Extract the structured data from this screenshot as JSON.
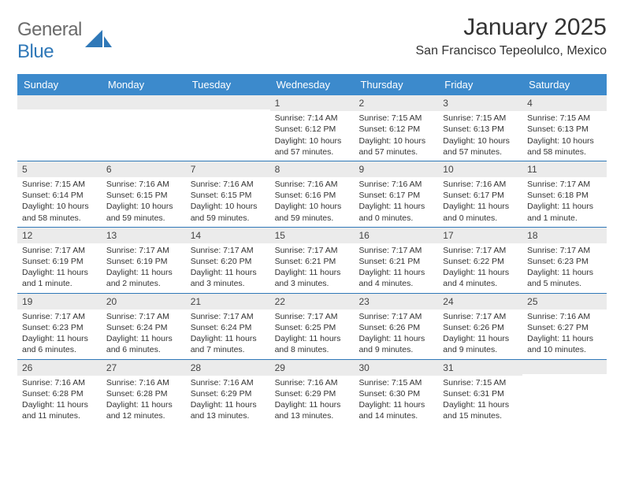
{
  "logo": {
    "word1": "General",
    "word2": "Blue"
  },
  "colors": {
    "header_bg": "#3c8acc",
    "row_divider": "#2f78b8",
    "day_band_bg": "#ebebeb",
    "logo_gray": "#6b6b6b",
    "logo_blue": "#2f78b8"
  },
  "title": "January 2025",
  "location": "San Francisco Tepeolulco, Mexico",
  "weekdays": [
    "Sunday",
    "Monday",
    "Tuesday",
    "Wednesday",
    "Thursday",
    "Friday",
    "Saturday"
  ],
  "weeks": [
    [
      null,
      null,
      null,
      {
        "n": "1",
        "sunrise": "7:14 AM",
        "sunset": "6:12 PM",
        "daylight": "10 hours and 57 minutes."
      },
      {
        "n": "2",
        "sunrise": "7:15 AM",
        "sunset": "6:12 PM",
        "daylight": "10 hours and 57 minutes."
      },
      {
        "n": "3",
        "sunrise": "7:15 AM",
        "sunset": "6:13 PM",
        "daylight": "10 hours and 57 minutes."
      },
      {
        "n": "4",
        "sunrise": "7:15 AM",
        "sunset": "6:13 PM",
        "daylight": "10 hours and 58 minutes."
      }
    ],
    [
      {
        "n": "5",
        "sunrise": "7:15 AM",
        "sunset": "6:14 PM",
        "daylight": "10 hours and 58 minutes."
      },
      {
        "n": "6",
        "sunrise": "7:16 AM",
        "sunset": "6:15 PM",
        "daylight": "10 hours and 59 minutes."
      },
      {
        "n": "7",
        "sunrise": "7:16 AM",
        "sunset": "6:15 PM",
        "daylight": "10 hours and 59 minutes."
      },
      {
        "n": "8",
        "sunrise": "7:16 AM",
        "sunset": "6:16 PM",
        "daylight": "10 hours and 59 minutes."
      },
      {
        "n": "9",
        "sunrise": "7:16 AM",
        "sunset": "6:17 PM",
        "daylight": "11 hours and 0 minutes."
      },
      {
        "n": "10",
        "sunrise": "7:16 AM",
        "sunset": "6:17 PM",
        "daylight": "11 hours and 0 minutes."
      },
      {
        "n": "11",
        "sunrise": "7:17 AM",
        "sunset": "6:18 PM",
        "daylight": "11 hours and 1 minute."
      }
    ],
    [
      {
        "n": "12",
        "sunrise": "7:17 AM",
        "sunset": "6:19 PM",
        "daylight": "11 hours and 1 minute."
      },
      {
        "n": "13",
        "sunrise": "7:17 AM",
        "sunset": "6:19 PM",
        "daylight": "11 hours and 2 minutes."
      },
      {
        "n": "14",
        "sunrise": "7:17 AM",
        "sunset": "6:20 PM",
        "daylight": "11 hours and 3 minutes."
      },
      {
        "n": "15",
        "sunrise": "7:17 AM",
        "sunset": "6:21 PM",
        "daylight": "11 hours and 3 minutes."
      },
      {
        "n": "16",
        "sunrise": "7:17 AM",
        "sunset": "6:21 PM",
        "daylight": "11 hours and 4 minutes."
      },
      {
        "n": "17",
        "sunrise": "7:17 AM",
        "sunset": "6:22 PM",
        "daylight": "11 hours and 4 minutes."
      },
      {
        "n": "18",
        "sunrise": "7:17 AM",
        "sunset": "6:23 PM",
        "daylight": "11 hours and 5 minutes."
      }
    ],
    [
      {
        "n": "19",
        "sunrise": "7:17 AM",
        "sunset": "6:23 PM",
        "daylight": "11 hours and 6 minutes."
      },
      {
        "n": "20",
        "sunrise": "7:17 AM",
        "sunset": "6:24 PM",
        "daylight": "11 hours and 6 minutes."
      },
      {
        "n": "21",
        "sunrise": "7:17 AM",
        "sunset": "6:24 PM",
        "daylight": "11 hours and 7 minutes."
      },
      {
        "n": "22",
        "sunrise": "7:17 AM",
        "sunset": "6:25 PM",
        "daylight": "11 hours and 8 minutes."
      },
      {
        "n": "23",
        "sunrise": "7:17 AM",
        "sunset": "6:26 PM",
        "daylight": "11 hours and 9 minutes."
      },
      {
        "n": "24",
        "sunrise": "7:17 AM",
        "sunset": "6:26 PM",
        "daylight": "11 hours and 9 minutes."
      },
      {
        "n": "25",
        "sunrise": "7:16 AM",
        "sunset": "6:27 PM",
        "daylight": "11 hours and 10 minutes."
      }
    ],
    [
      {
        "n": "26",
        "sunrise": "7:16 AM",
        "sunset": "6:28 PM",
        "daylight": "11 hours and 11 minutes."
      },
      {
        "n": "27",
        "sunrise": "7:16 AM",
        "sunset": "6:28 PM",
        "daylight": "11 hours and 12 minutes."
      },
      {
        "n": "28",
        "sunrise": "7:16 AM",
        "sunset": "6:29 PM",
        "daylight": "11 hours and 13 minutes."
      },
      {
        "n": "29",
        "sunrise": "7:16 AM",
        "sunset": "6:29 PM",
        "daylight": "11 hours and 13 minutes."
      },
      {
        "n": "30",
        "sunrise": "7:15 AM",
        "sunset": "6:30 PM",
        "daylight": "11 hours and 14 minutes."
      },
      {
        "n": "31",
        "sunrise": "7:15 AM",
        "sunset": "6:31 PM",
        "daylight": "11 hours and 15 minutes."
      },
      null
    ]
  ],
  "labels": {
    "sunrise": "Sunrise: ",
    "sunset": "Sunset: ",
    "daylight": "Daylight: "
  }
}
